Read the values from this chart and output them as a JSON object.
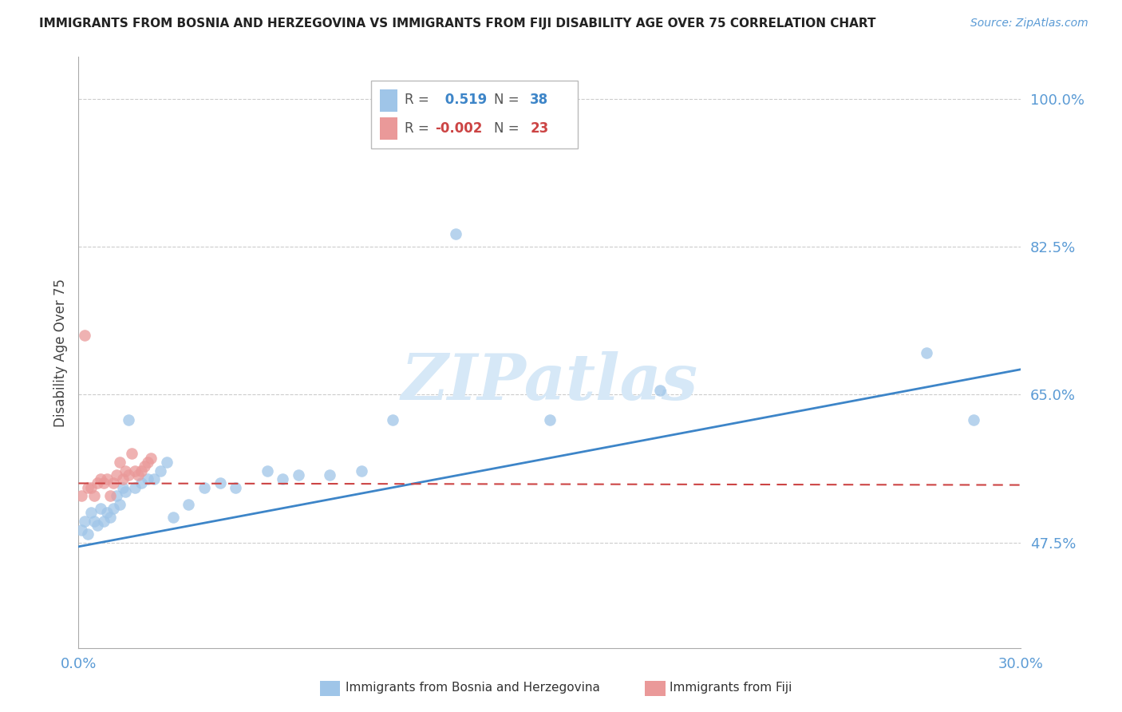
{
  "title": "IMMIGRANTS FROM BOSNIA AND HERZEGOVINA VS IMMIGRANTS FROM FIJI DISABILITY AGE OVER 75 CORRELATION CHART",
  "source": "Source: ZipAtlas.com",
  "ylabel": "Disability Age Over 75",
  "ytick_labels": [
    "100.0%",
    "82.5%",
    "65.0%",
    "47.5%"
  ],
  "ytick_values": [
    1.0,
    0.825,
    0.65,
    0.475
  ],
  "xmin": 0.0,
  "xmax": 0.3,
  "ymin": 0.35,
  "ymax": 1.05,
  "color_blue": "#9fc5e8",
  "color_pink": "#ea9999",
  "color_blue_line": "#3d85c8",
  "color_pink_line": "#cc4444",
  "legend_r_blue": "0.519",
  "legend_n_blue": "38",
  "legend_r_pink": "-0.002",
  "legend_n_pink": "23",
  "grid_color": "#cccccc",
  "bg_color": "#ffffff",
  "bosnia_x": [
    0.001,
    0.002,
    0.003,
    0.004,
    0.005,
    0.006,
    0.007,
    0.008,
    0.009,
    0.01,
    0.011,
    0.012,
    0.013,
    0.014,
    0.015,
    0.016,
    0.018,
    0.02,
    0.022,
    0.024,
    0.026,
    0.028,
    0.03,
    0.035,
    0.04,
    0.045,
    0.05,
    0.06,
    0.065,
    0.07,
    0.08,
    0.09,
    0.1,
    0.12,
    0.15,
    0.185,
    0.27,
    0.285
  ],
  "bosnia_y": [
    0.49,
    0.5,
    0.485,
    0.51,
    0.5,
    0.495,
    0.515,
    0.5,
    0.51,
    0.505,
    0.515,
    0.53,
    0.52,
    0.54,
    0.535,
    0.62,
    0.54,
    0.545,
    0.55,
    0.55,
    0.56,
    0.57,
    0.505,
    0.52,
    0.54,
    0.545,
    0.54,
    0.56,
    0.55,
    0.555,
    0.555,
    0.56,
    0.62,
    0.84,
    0.62,
    0.655,
    0.7,
    0.62
  ],
  "fiji_x": [
    0.001,
    0.002,
    0.003,
    0.004,
    0.005,
    0.006,
    0.007,
    0.008,
    0.009,
    0.01,
    0.011,
    0.012,
    0.013,
    0.014,
    0.015,
    0.016,
    0.017,
    0.018,
    0.019,
    0.02,
    0.021,
    0.022,
    0.023
  ],
  "fiji_y": [
    0.53,
    0.72,
    0.54,
    0.54,
    0.53,
    0.545,
    0.55,
    0.545,
    0.55,
    0.53,
    0.545,
    0.555,
    0.57,
    0.55,
    0.56,
    0.555,
    0.58,
    0.56,
    0.555,
    0.56,
    0.565,
    0.57,
    0.575
  ],
  "blue_line_x": [
    0.0,
    0.3
  ],
  "blue_line_y": [
    0.47,
    0.68
  ],
  "pink_line_x": [
    0.0,
    0.3
  ],
  "pink_line_y": [
    0.545,
    0.543
  ]
}
